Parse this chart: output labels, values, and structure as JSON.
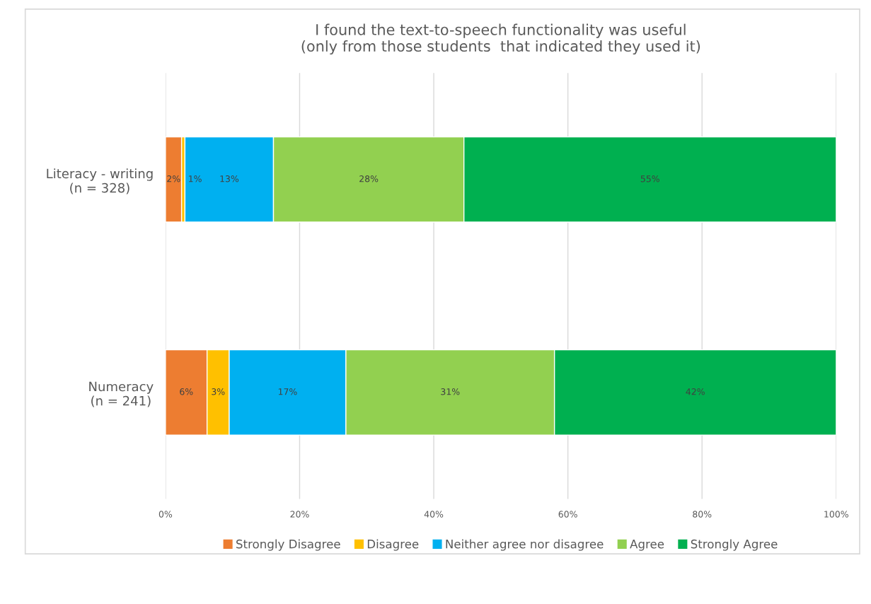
{
  "chart_data": {
    "type": "bar",
    "orientation": "horizontal",
    "stacked": true,
    "title": "I found the text-to-speech functionality was useful\n(only from those students  that indicated they used it)",
    "categories": [
      "Literacy - writing\n(n = 328)",
      "Numeracy\n(n = 241)"
    ],
    "series": [
      {
        "name": "Strongly Disagree",
        "color": "#ed7d31",
        "values": [
          2.4,
          6.2
        ],
        "value_labels": [
          "2%",
          "6%"
        ]
      },
      {
        "name": "Disagree",
        "color": "#ffc000",
        "values": [
          0.5,
          3.3
        ],
        "value_labels": [
          "1%",
          "3%"
        ]
      },
      {
        "name": "Neither agree nor disagree",
        "color": "#00b0f0",
        "values": [
          13.2,
          17.4
        ],
        "value_labels": [
          "13%",
          "17%"
        ]
      },
      {
        "name": "Agree",
        "color": "#92d050",
        "values": [
          28.4,
          31.1
        ],
        "value_labels": [
          "28%",
          "31%"
        ]
      },
      {
        "name": "Strongly Agree",
        "color": "#00b050",
        "values": [
          55.5,
          42.0
        ],
        "value_labels": [
          "55%",
          "42%"
        ]
      }
    ],
    "xlim": [
      0,
      100
    ],
    "xticks": [
      {
        "value": 0,
        "label": "0%"
      },
      {
        "value": 20,
        "label": "20%"
      },
      {
        "value": 40,
        "label": "40%"
      },
      {
        "value": 60,
        "label": "60%"
      },
      {
        "value": 80,
        "label": "80%"
      },
      {
        "value": 100,
        "label": "100%"
      }
    ],
    "grid": "x",
    "legend": "bottom"
  }
}
